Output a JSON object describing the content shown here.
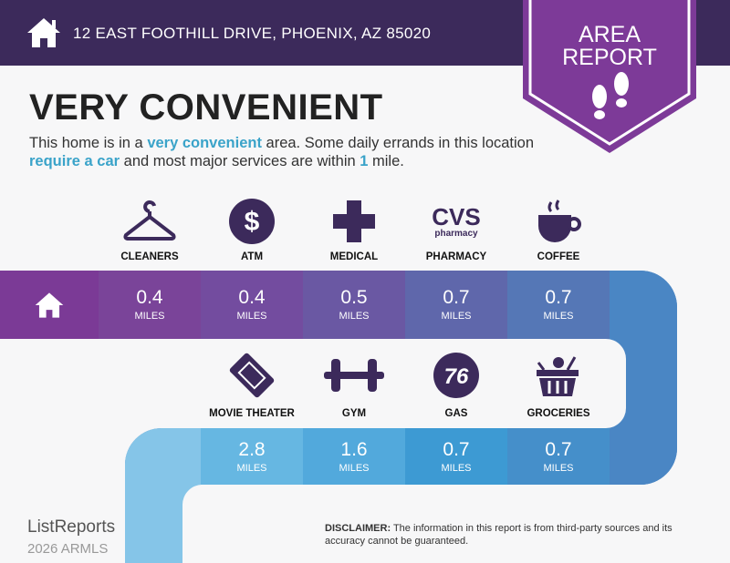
{
  "header": {
    "address": "12 EAST FOOTHILL DRIVE, PHOENIX, AZ 85020",
    "icon": "home-icon",
    "bg": "#3c2a5b"
  },
  "badge": {
    "line1": "AREA",
    "line2": "REPORT",
    "icon": "footprints-icon",
    "color": "#7d3a98"
  },
  "title": "VERY CONVENIENT",
  "description": {
    "p1": "This home is in a ",
    "h1": "very convenient",
    "p2": " area. Some daily errands in this location ",
    "h2": "require a car",
    "p3": " and most major services are within ",
    "h3": "1",
    "p4": " mile."
  },
  "row1": [
    {
      "label": "CLEANERS",
      "icon": "hanger-icon",
      "value": "0.4",
      "unit": "MILES",
      "color": "#7a4499"
    },
    {
      "label": "ATM",
      "icon": "dollar-icon",
      "value": "0.4",
      "unit": "MILES",
      "color": "#734c9f"
    },
    {
      "label": "MEDICAL",
      "icon": "medical-cross-icon",
      "value": "0.5",
      "unit": "MILES",
      "color": "#6a58a3"
    },
    {
      "label": "PHARMACY",
      "icon": "cvs-pharmacy-icon",
      "logo_text": "CVS pharmacy",
      "value": "0.7",
      "unit": "MILES",
      "color": "#5f67ab"
    },
    {
      "label": "COFFEE",
      "icon": "coffee-cup-icon",
      "value": "0.7",
      "unit": "MILES",
      "color": "#5577b6"
    }
  ],
  "row2": [
    {
      "label": "MOVIE THEATER",
      "icon": "ticket-icon",
      "value": "2.8",
      "unit": "MILES",
      "color": "#66b7e2"
    },
    {
      "label": "GYM",
      "icon": "dumbbell-icon",
      "value": "1.6",
      "unit": "MILES",
      "color": "#52a9dc"
    },
    {
      "label": "GAS",
      "icon": "76-gas-icon",
      "logo_text": "76",
      "value": "0.7",
      "unit": "MILES",
      "color": "#3d9ad3"
    },
    {
      "label": "GROCERIES",
      "icon": "grocery-basket-icon",
      "value": "0.7",
      "unit": "MILES",
      "color": "#458fca"
    }
  ],
  "footer": {
    "logo": "ListReports",
    "watermark": "2026 ARMLS",
    "disclaimer_label": "DISCLAIMER:",
    "disclaimer": " The information in this report is from third-party sources and its accuracy cannot be guaranteed."
  }
}
